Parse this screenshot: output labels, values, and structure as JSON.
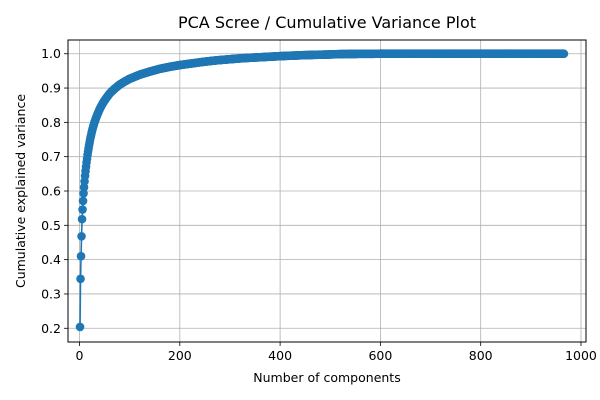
{
  "chart_data": {
    "type": "line",
    "title": "PCA Scree / Cumulative Variance Plot",
    "xlabel": "Number of components",
    "ylabel": "Cumulative explained variance",
    "xlim": [
      -23,
      1010
    ],
    "ylim": [
      0.16,
      1.04
    ],
    "xticks": [
      0,
      200,
      400,
      600,
      800,
      1000
    ],
    "yticks": [
      0.2,
      0.3,
      0.4,
      0.5,
      0.6,
      0.7,
      0.8,
      0.9,
      1.0
    ],
    "grid": true,
    "marker": "circle",
    "n_components": 966,
    "color": "#1f77b4",
    "series": [
      {
        "x": [
          1,
          2,
          3,
          4,
          5,
          6,
          7,
          8,
          9,
          10,
          11,
          12,
          13,
          14,
          15,
          16,
          17,
          18,
          19,
          20,
          22,
          24,
          26,
          28,
          30,
          35,
          40,
          45,
          50,
          60,
          70,
          80,
          90,
          100,
          120,
          140,
          160,
          180,
          200,
          225,
          250,
          275,
          300,
          325,
          350,
          375,
          400,
          450,
          500,
          520,
          550,
          600,
          700,
          800,
          900,
          966
        ],
        "y": [
          0.204,
          0.344,
          0.41,
          0.468,
          0.518,
          0.546,
          0.571,
          0.593,
          0.611,
          0.628,
          0.644,
          0.658,
          0.671,
          0.683,
          0.694,
          0.705,
          0.715,
          0.724,
          0.733,
          0.741,
          0.756,
          0.769,
          0.781,
          0.791,
          0.801,
          0.821,
          0.838,
          0.852,
          0.864,
          0.884,
          0.898,
          0.91,
          0.919,
          0.927,
          0.939,
          0.948,
          0.956,
          0.962,
          0.967,
          0.972,
          0.977,
          0.981,
          0.984,
          0.987,
          0.989,
          0.991,
          0.993,
          0.996,
          0.998,
          0.999,
          0.9995,
          1.0,
          1.0,
          1.0,
          1.0,
          1.0
        ]
      }
    ]
  }
}
